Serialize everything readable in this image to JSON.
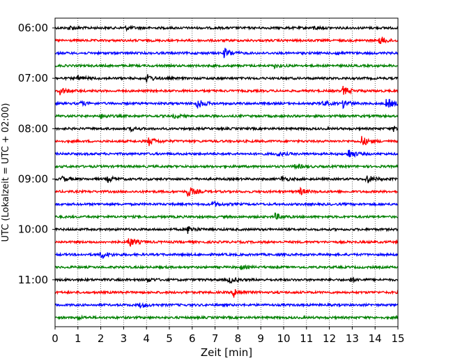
{
  "chart_data": {
    "type": "line",
    "title": "",
    "xlabel": "Zeit  [min]",
    "ylabel": "UTC (Lokalzeit = UTC + 02:00)",
    "xlim": [
      0,
      15
    ],
    "x_ticks": [
      "0",
      "1",
      "2",
      "3",
      "4",
      "5",
      "6",
      "7",
      "8",
      "9",
      "10",
      "11",
      "12",
      "13",
      "14",
      "15"
    ],
    "y_ticks": [
      "06:00",
      "07:00",
      "08:00",
      "09:00",
      "10:00",
      "11:00"
    ],
    "grid": "vertical dotted",
    "line_colors": [
      "#000000",
      "#ff0000",
      "#0000ff",
      "#008000"
    ],
    "series": [
      {
        "row_start": "06:00",
        "color": "#000000",
        "events_min": [
          {
            "t": 0.6,
            "a": 0.5
          },
          {
            "t": 3.1,
            "a": 0.4
          },
          {
            "t": 11.3,
            "a": 0.4
          }
        ]
      },
      {
        "row_start": "06:15",
        "color": "#ff0000",
        "events_min": [
          {
            "t": 14.2,
            "a": 1.0
          }
        ]
      },
      {
        "row_start": "06:30",
        "color": "#0000ff",
        "events_min": [
          {
            "t": 7.4,
            "a": 1.2
          },
          {
            "t": 12.3,
            "a": 0.4
          }
        ]
      },
      {
        "row_start": "06:45",
        "color": "#008000",
        "events_min": [
          {
            "t": 9.6,
            "a": 0.4
          }
        ]
      },
      {
        "row_start": "07:00",
        "color": "#000000",
        "events_min": [
          {
            "t": 1.0,
            "a": 0.6
          },
          {
            "t": 4.0,
            "a": 0.9
          }
        ]
      },
      {
        "row_start": "07:15",
        "color": "#ff0000",
        "events_min": [
          {
            "t": 0.2,
            "a": 0.9
          },
          {
            "t": 12.6,
            "a": 1.0
          }
        ]
      },
      {
        "row_start": "07:30",
        "color": "#0000ff",
        "events_min": [
          {
            "t": 1.1,
            "a": 0.5
          },
          {
            "t": 6.2,
            "a": 1.2
          },
          {
            "t": 11.7,
            "a": 0.6
          },
          {
            "t": 12.6,
            "a": 0.9
          },
          {
            "t": 14.5,
            "a": 1.3
          }
        ]
      },
      {
        "row_start": "07:45",
        "color": "#008000",
        "events_min": [
          {
            "t": 2.0,
            "a": 0.5
          },
          {
            "t": 5.2,
            "a": 0.4
          }
        ]
      },
      {
        "row_start": "08:00",
        "color": "#000000",
        "events_min": [
          {
            "t": 3.3,
            "a": 0.4
          },
          {
            "t": 14.8,
            "a": 0.6
          }
        ]
      },
      {
        "row_start": "08:15",
        "color": "#ff0000",
        "events_min": [
          {
            "t": 4.1,
            "a": 1.0
          },
          {
            "t": 13.4,
            "a": 1.2
          }
        ]
      },
      {
        "row_start": "08:30",
        "color": "#0000ff",
        "events_min": [
          {
            "t": 9.7,
            "a": 0.5
          },
          {
            "t": 12.8,
            "a": 1.3
          }
        ]
      },
      {
        "row_start": "08:45",
        "color": "#008000",
        "events_min": [
          {
            "t": 10.5,
            "a": 0.6
          }
        ]
      },
      {
        "row_start": "09:00",
        "color": "#000000",
        "events_min": [
          {
            "t": 0.3,
            "a": 0.6
          },
          {
            "t": 2.3,
            "a": 0.7
          },
          {
            "t": 9.9,
            "a": 0.6
          },
          {
            "t": 13.6,
            "a": 1.1
          }
        ]
      },
      {
        "row_start": "09:15",
        "color": "#ff0000",
        "events_min": [
          {
            "t": 5.8,
            "a": 1.3
          },
          {
            "t": 10.7,
            "a": 0.8
          }
        ]
      },
      {
        "row_start": "09:30",
        "color": "#0000ff",
        "events_min": [
          {
            "t": 6.9,
            "a": 0.6
          }
        ]
      },
      {
        "row_start": "09:45",
        "color": "#008000",
        "events_min": [
          {
            "t": 9.6,
            "a": 0.8
          }
        ]
      },
      {
        "row_start": "10:00",
        "color": "#000000",
        "events_min": [
          {
            "t": 5.8,
            "a": 0.9
          }
        ]
      },
      {
        "row_start": "10:15",
        "color": "#ff0000",
        "events_min": [
          {
            "t": 3.2,
            "a": 1.3
          }
        ]
      },
      {
        "row_start": "10:30",
        "color": "#0000ff",
        "events_min": [
          {
            "t": 2.0,
            "a": 1.0
          }
        ]
      },
      {
        "row_start": "10:45",
        "color": "#008000",
        "events_min": [
          {
            "t": 8.1,
            "a": 0.4
          }
        ]
      },
      {
        "row_start": "11:00",
        "color": "#000000",
        "events_min": [
          {
            "t": 4.0,
            "a": 0.5
          },
          {
            "t": 7.6,
            "a": 0.8
          },
          {
            "t": 12.9,
            "a": 0.5
          }
        ]
      },
      {
        "row_start": "11:15",
        "color": "#ff0000",
        "events_min": [
          {
            "t": 7.8,
            "a": 1.2
          }
        ]
      },
      {
        "row_start": "11:30",
        "color": "#0000ff",
        "events_min": [
          {
            "t": 3.7,
            "a": 0.6
          }
        ]
      },
      {
        "row_start": "11:45",
        "color": "#008000",
        "events_min": [
          {
            "t": 1.0,
            "a": 0.3
          }
        ]
      }
    ]
  }
}
